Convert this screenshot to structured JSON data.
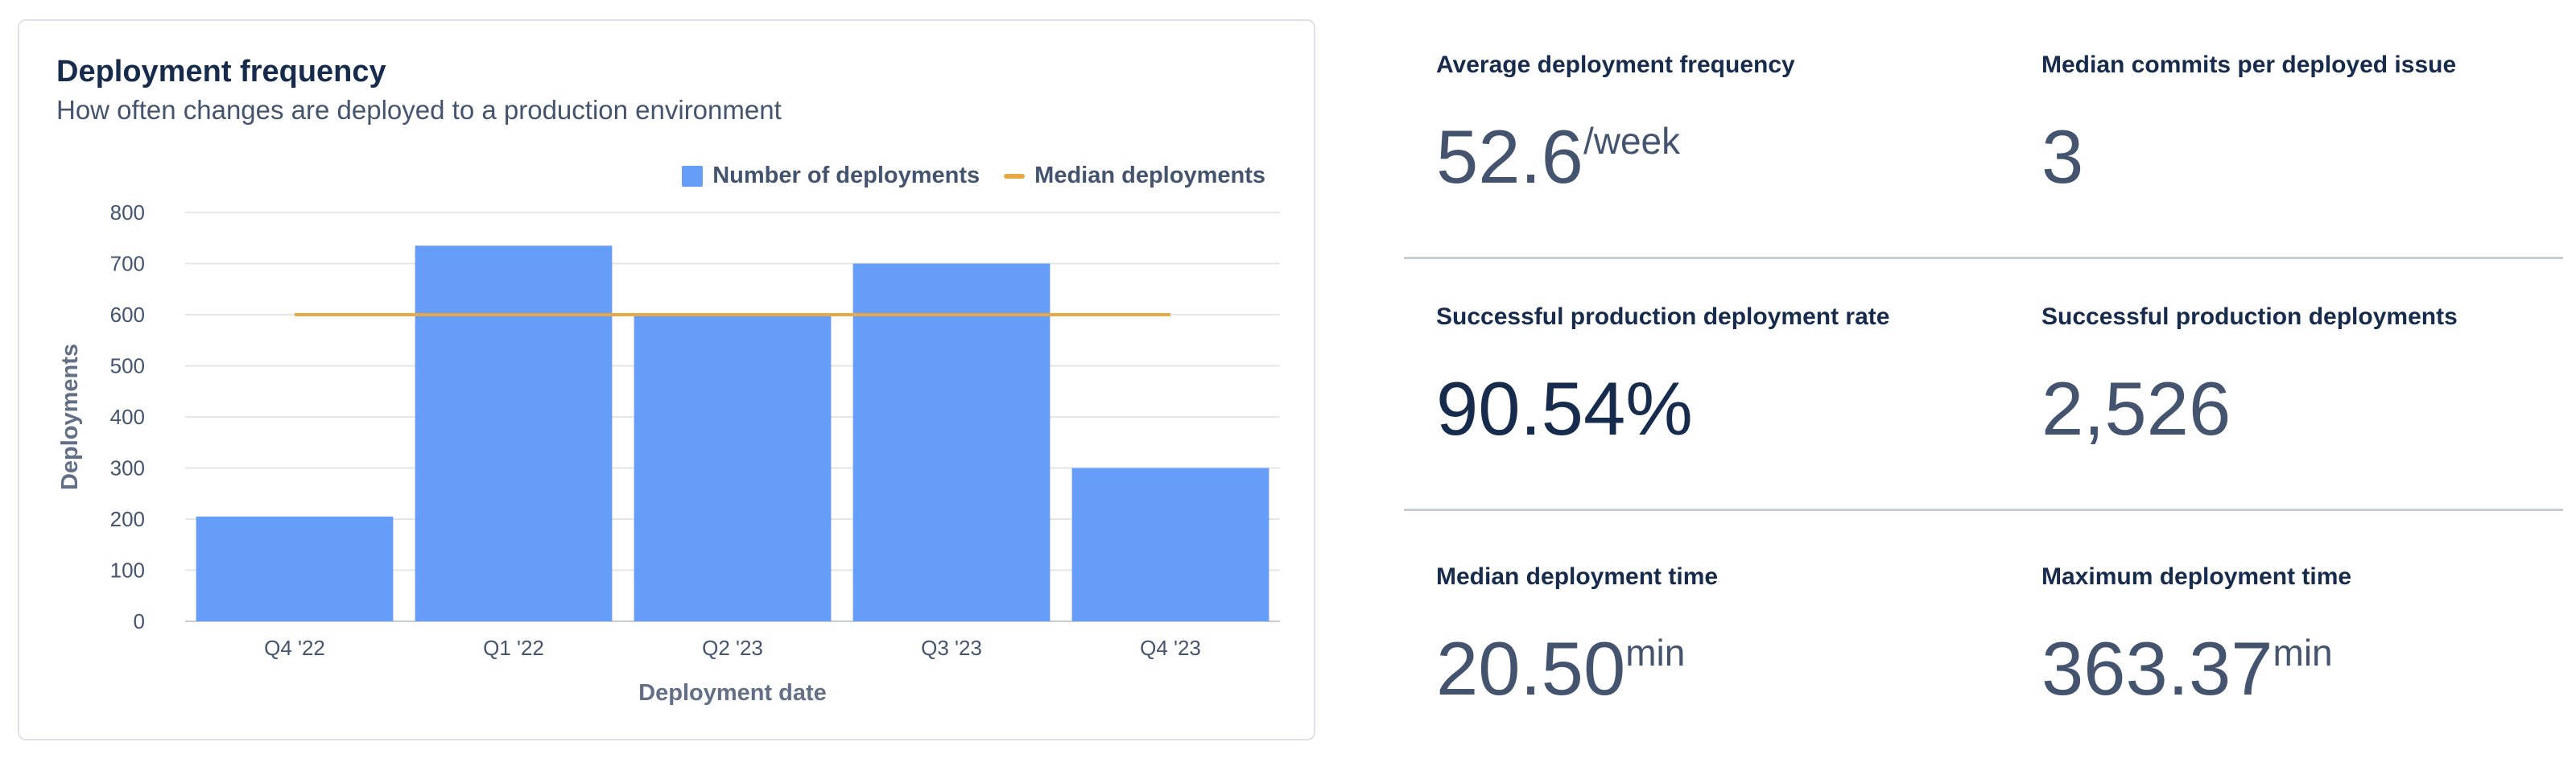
{
  "deployment_card": {
    "title": "Deployment frequency",
    "subtitle": "How often changes are deployed to a production environment",
    "legend": {
      "bars": "Number of deployments",
      "line": "Median deployments"
    }
  },
  "chart_data": {
    "type": "bar",
    "categories": [
      "Q4 '22",
      "Q1 '22",
      "Q2 '23",
      "Q3 '23",
      "Q4 '23"
    ],
    "series": [
      {
        "name": "Number of deployments",
        "values": [
          205,
          735,
          600,
          700,
          300
        ]
      },
      {
        "name": "Median deployments",
        "values": [
          600,
          600,
          600,
          600,
          600
        ]
      }
    ],
    "xlabel": "Deployment date",
    "ylabel": "Deployments",
    "ylim": [
      0,
      800
    ],
    "yticks": [
      "0",
      "100",
      "200",
      "300",
      "400",
      "500",
      "600",
      "700",
      "800"
    ],
    "ytick_values": [
      0,
      100,
      200,
      300,
      400,
      500,
      600,
      700,
      800
    ],
    "grid": true,
    "legend_position": "top-right",
    "colors": {
      "bars": "#669df8",
      "line": "#e8a844"
    }
  },
  "stats": [
    {
      "label": "Average deployment frequency",
      "value": "52.6",
      "unit": "/week"
    },
    {
      "label": "Median commits per deployed issue",
      "value": "3",
      "unit": ""
    },
    {
      "label": "Successful production deployment rate",
      "value": "90.54%",
      "unit": ""
    },
    {
      "label": "Successful production deployments",
      "value": "2,526",
      "unit": ""
    },
    {
      "label": "Median deployment time",
      "value": "20.50",
      "unit": "min"
    },
    {
      "label": "Maximum deployment time",
      "value": "363.37",
      "unit": "min"
    }
  ]
}
